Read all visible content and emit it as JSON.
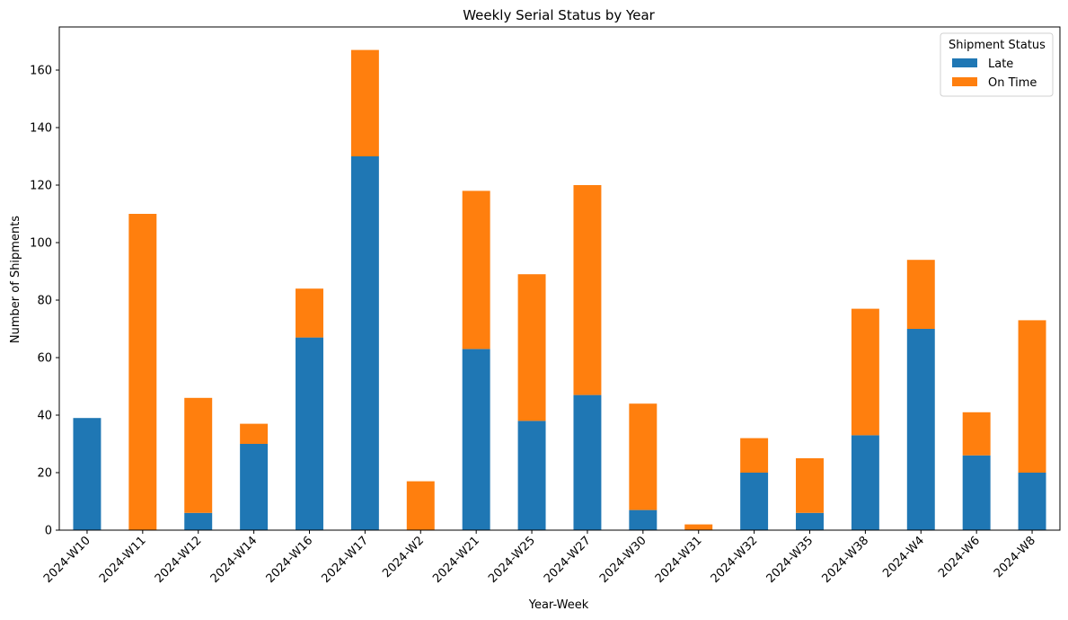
{
  "chart_data": {
    "type": "bar",
    "stacked": true,
    "title": "Weekly Serial Status by Year",
    "xlabel": "Year-Week",
    "ylabel": "Number of Shipments",
    "ylim": [
      0,
      175
    ],
    "yticks": [
      0,
      20,
      40,
      60,
      80,
      100,
      120,
      140,
      160
    ],
    "grid": false,
    "legend_title": "Shipment Status",
    "legend_position": "top-right",
    "categories": [
      "2024-W10",
      "2024-W11",
      "2024-W12",
      "2024-W14",
      "2024-W16",
      "2024-W17",
      "2024-W2",
      "2024-W21",
      "2024-W25",
      "2024-W27",
      "2024-W30",
      "2024-W31",
      "2024-W32",
      "2024-W35",
      "2024-W38",
      "2024-W4",
      "2024-W6",
      "2024-W8"
    ],
    "series": [
      {
        "name": "Late",
        "color": "#1f77b4",
        "values": [
          39,
          0,
          6,
          30,
          67,
          130,
          0,
          63,
          38,
          47,
          7,
          0,
          20,
          6,
          33,
          70,
          26,
          20
        ]
      },
      {
        "name": "On Time",
        "color": "#ff7f0e",
        "values": [
          0,
          110,
          40,
          7,
          17,
          37,
          17,
          55,
          51,
          73,
          37,
          2,
          12,
          19,
          44,
          24,
          15,
          53
        ]
      }
    ]
  }
}
